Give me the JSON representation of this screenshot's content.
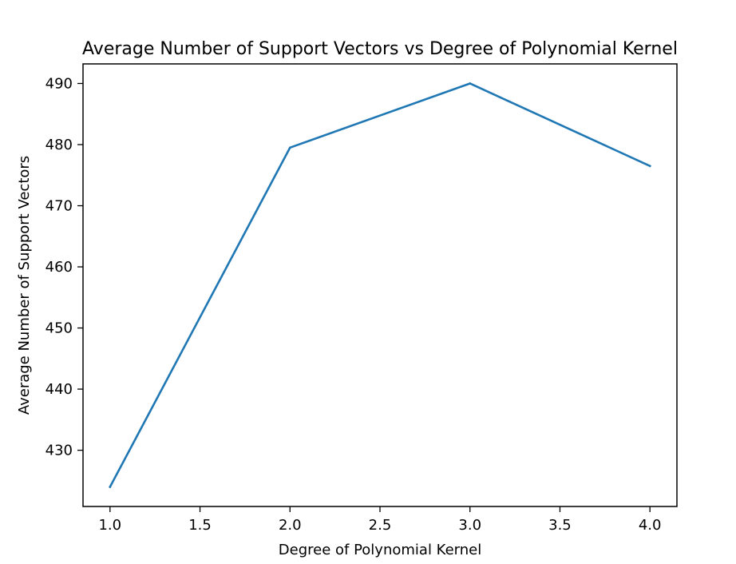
{
  "chart_data": {
    "type": "line",
    "title": "Average Number of Support Vectors vs Degree of Polynomial Kernel",
    "xlabel": "Degree of Polynomial Kernel",
    "ylabel": "Average Number of Support Vectors",
    "x": [
      1.0,
      2.0,
      3.0,
      4.0
    ],
    "series": [
      {
        "values": [
          424.0,
          479.5,
          490.0,
          476.5
        ],
        "color": "#1f77b4"
      }
    ],
    "xlim": [
      0.85,
      4.15
    ],
    "ylim": [
      420.8,
      493.2
    ],
    "x_ticks": [
      "1.0",
      "1.5",
      "2.0",
      "2.5",
      "3.0",
      "3.5",
      "4.0"
    ],
    "y_ticks": [
      "430",
      "440",
      "450",
      "460",
      "470",
      "480",
      "490"
    ],
    "grid": false,
    "legend": "none"
  }
}
